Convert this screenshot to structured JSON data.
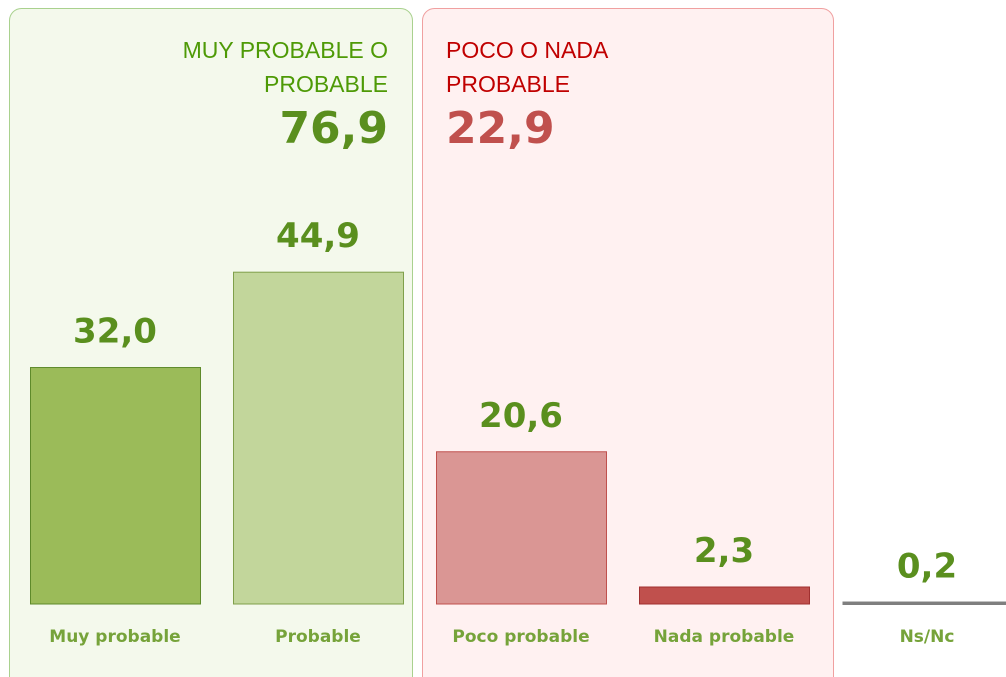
{
  "chart_data": {
    "type": "bar",
    "categories": [
      "Muy probable",
      "Probable",
      "Poco probable",
      "Nada probable",
      "Ns/Nc"
    ],
    "values": [
      32.0,
      44.9,
      20.6,
      2.3,
      0.2
    ],
    "value_labels": [
      "32,0",
      "44,9",
      "20,6",
      "2,3",
      "0,2"
    ],
    "colors": [
      "#9bbb59",
      "#c2d69b",
      "#da9694",
      "#c0504d",
      "#7f7f7f"
    ],
    "groups": [
      {
        "title_lines": [
          "MUY PROBABLE O",
          "PROBABLE"
        ],
        "total": "76,9",
        "color": "#4e9a06",
        "total_color": "#5a8f1e"
      },
      {
        "title_lines": [
          "POCO O NADA",
          "PROBABLE"
        ],
        "total": "22,9",
        "color": "#c00000",
        "total_color": "#c0504d"
      }
    ]
  }
}
